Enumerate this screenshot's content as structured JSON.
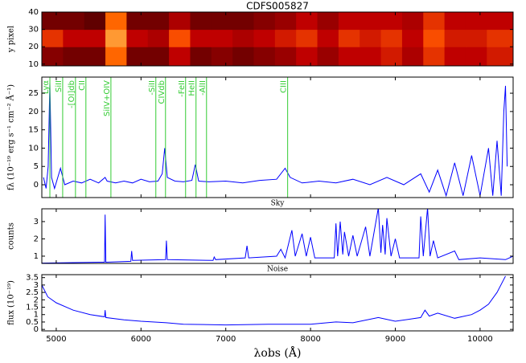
{
  "chart_data": [
    {
      "type": "heatmap",
      "title": "CDFS005827",
      "ylabel": "y pixel",
      "cmap": "gist_heat",
      "xlim": [
        4830,
        10390
      ],
      "ylim": [
        9,
        40
      ],
      "yticks": [
        10,
        20,
        30,
        40
      ],
      "bins": [
        4830,
        5080,
        5330,
        5580,
        5830,
        6080,
        6330,
        6580,
        6830,
        7080,
        7330,
        7580,
        7830,
        8080,
        8330,
        8580,
        8830,
        9080,
        9330,
        9580,
        9830,
        10080,
        10390
      ],
      "row_edges": [
        9,
        20,
        30,
        40
      ],
      "values": [
        [
          0.35,
          0.3,
          0.3,
          0.7,
          0.3,
          0.3,
          0.5,
          0.3,
          0.35,
          0.3,
          0.35,
          0.4,
          0.5,
          0.4,
          0.5,
          0.5,
          0.55,
          0.45,
          0.6,
          0.5,
          0.5,
          0.55
        ],
        [
          0.6,
          0.5,
          0.5,
          0.8,
          0.5,
          0.45,
          0.65,
          0.5,
          0.5,
          0.45,
          0.5,
          0.55,
          0.6,
          0.5,
          0.6,
          0.55,
          0.6,
          0.5,
          0.65,
          0.55,
          0.55,
          0.6
        ],
        [
          0.3,
          0.3,
          0.25,
          0.7,
          0.3,
          0.3,
          0.45,
          0.3,
          0.3,
          0.3,
          0.35,
          0.4,
          0.5,
          0.4,
          0.5,
          0.5,
          0.5,
          0.45,
          0.6,
          0.5,
          0.5,
          0.5
        ]
      ]
    },
    {
      "type": "line",
      "ylabel": "fλ (10⁻¹⁹ erg s⁻¹ cm⁻² Å⁻¹)",
      "color": "#0000ff",
      "line_color": "#33cc33",
      "xlim": [
        4830,
        10390
      ],
      "ylim": [
        -3.5,
        29.4
      ],
      "yticks": [
        0,
        5,
        10,
        15,
        20,
        25
      ],
      "x": [
        4850,
        4880,
        4905,
        4925,
        4945,
        4980,
        5050,
        5100,
        5200,
        5300,
        5400,
        5500,
        5577,
        5600,
        5700,
        5800,
        5900,
        6000,
        6100,
        6200,
        6250,
        6280,
        6310,
        6400,
        6500,
        6600,
        6640,
        6680,
        6800,
        7000,
        7200,
        7400,
        7600,
        7700,
        7760,
        7900,
        8100,
        8300,
        8500,
        8700,
        8900,
        9100,
        9300,
        9400,
        9500,
        9600,
        9700,
        9800,
        9900,
        10000,
        10100,
        10150,
        10200,
        10250,
        10280,
        10300,
        10320
      ],
      "values": [
        2,
        -1,
        5,
        28,
        2,
        -1,
        4.5,
        0,
        1,
        0.5,
        1.5,
        0.5,
        2,
        1,
        0.5,
        1,
        0.5,
        1.5,
        0.8,
        1,
        3,
        10,
        2,
        1,
        0.8,
        1.2,
        5.5,
        1,
        0.8,
        1,
        0.5,
        1.2,
        1.5,
        4.5,
        2,
        0.5,
        1,
        0.5,
        1.5,
        0,
        2,
        0,
        3,
        -2,
        4,
        -3,
        6,
        -3,
        8,
        -3,
        10,
        -3,
        12,
        -3,
        20,
        27,
        5
      ],
      "lines": [
        {
          "label": "Lyα",
          "x": 4925
        },
        {
          "label": "SiII",
          "x": 5076
        },
        {
          "label": "-[OI]db",
          "x": 5227
        },
        {
          "label": "CII",
          "x": 5350
        },
        {
          "label": "SiIV+OIV",
          "x": 5645
        },
        {
          "label": "-SiII",
          "x": 6175
        },
        {
          "label": "CIVdb",
          "x": 6289
        },
        {
          "label": "-FeII",
          "x": 6526
        },
        {
          "label": "HeII",
          "x": 6649
        },
        {
          "label": "-AlII",
          "x": 6773
        },
        {
          "label": "CIII",
          "x": 7730
        }
      ]
    },
    {
      "type": "line",
      "title": "Sky",
      "ylabel": "counts",
      "color": "#0000ff",
      "xlim": [
        4830,
        10390
      ],
      "ylim": [
        0.58,
        3.74
      ],
      "yticks": [
        1,
        2,
        3
      ],
      "x": [
        4830,
        5500,
        5570,
        5577,
        5585,
        5880,
        5890,
        5900,
        6290,
        6300,
        6310,
        6850,
        6863,
        6880,
        7230,
        7250,
        7270,
        7600,
        7650,
        7700,
        7780,
        7820,
        7900,
        7950,
        8000,
        8050,
        8280,
        8300,
        8320,
        8350,
        8380,
        8400,
        8450,
        8500,
        8550,
        8650,
        8700,
        8800,
        8830,
        8850,
        8880,
        8900,
        8950,
        9000,
        9050,
        9280,
        9300,
        9330,
        9380,
        9410,
        9450,
        9500,
        9700,
        9750,
        10000,
        10300,
        10390
      ],
      "values": [
        0.6,
        0.65,
        0.65,
        3.4,
        0.65,
        0.7,
        1.3,
        0.75,
        0.8,
        1.9,
        0.8,
        0.75,
        0.95,
        0.8,
        0.9,
        1.6,
        0.9,
        1.0,
        1.4,
        0.9,
        2.5,
        1.0,
        2.3,
        1.0,
        2.1,
        0.9,
        0.9,
        2.9,
        1.0,
        3.0,
        1.1,
        2.4,
        1.0,
        2.2,
        1.0,
        2.7,
        1.0,
        3.8,
        1.2,
        2.8,
        1.1,
        3.2,
        1.0,
        2.0,
        0.9,
        0.9,
        3.3,
        1.0,
        3.8,
        1.0,
        1.9,
        0.9,
        1.3,
        0.8,
        0.9,
        0.8,
        1.0
      ]
    },
    {
      "type": "line",
      "title": "Noise",
      "ylabel": "flux (10⁻¹⁹)",
      "xlabel": "λobs  (Å)",
      "color": "#0000ff",
      "xlim": [
        4830,
        10390
      ],
      "ylim": [
        -0.1,
        3.7
      ],
      "yticks": [
        0.0,
        0.5,
        1.0,
        1.5,
        2.0,
        2.5,
        3.0,
        3.5
      ],
      "xticks": [
        5000,
        6000,
        7000,
        8000,
        9000,
        10000
      ],
      "x": [
        4830,
        4900,
        5000,
        5200,
        5400,
        5570,
        5577,
        5585,
        5800,
        6000,
        6300,
        6500,
        7000,
        7500,
        8000,
        8300,
        8500,
        8800,
        9000,
        9300,
        9350,
        9400,
        9500,
        9700,
        9900,
        10000,
        10100,
        10200,
        10300
      ],
      "values": [
        3.0,
        2.2,
        1.8,
        1.3,
        1.0,
        0.85,
        1.3,
        0.8,
        0.65,
        0.55,
        0.45,
        0.35,
        0.3,
        0.35,
        0.35,
        0.5,
        0.45,
        0.8,
        0.55,
        0.8,
        1.3,
        0.9,
        1.1,
        0.75,
        1.0,
        1.3,
        1.7,
        2.5,
        3.6
      ]
    }
  ]
}
